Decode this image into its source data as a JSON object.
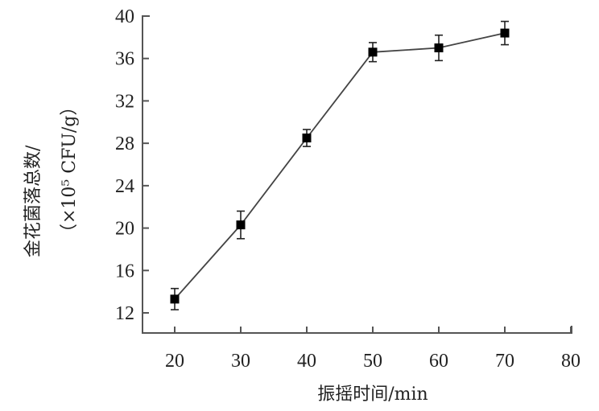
{
  "chart_data": {
    "type": "line",
    "title": "",
    "xlabel": "振摇时间/min",
    "ylabel_line1": "金花菌落总数/",
    "ylabel_line2": "（×10⁵ CFU/g）",
    "x_ticks": [
      20,
      30,
      40,
      50,
      60,
      70,
      80
    ],
    "y_ticks": [
      12,
      16,
      20,
      24,
      28,
      32,
      36,
      40
    ],
    "xlim": [
      15,
      80
    ],
    "ylim": [
      10,
      40
    ],
    "grid": false,
    "legend": null,
    "series": [
      {
        "name": "金花菌落总数",
        "marker": "square",
        "color": "#000000",
        "line_color": "#444444",
        "x": [
          20,
          30,
          40,
          50,
          60,
          70
        ],
        "y": [
          13.3,
          20.3,
          28.5,
          36.6,
          37.0,
          38.4
        ],
        "error": [
          1.0,
          1.3,
          0.8,
          0.9,
          1.2,
          1.1
        ]
      }
    ]
  }
}
